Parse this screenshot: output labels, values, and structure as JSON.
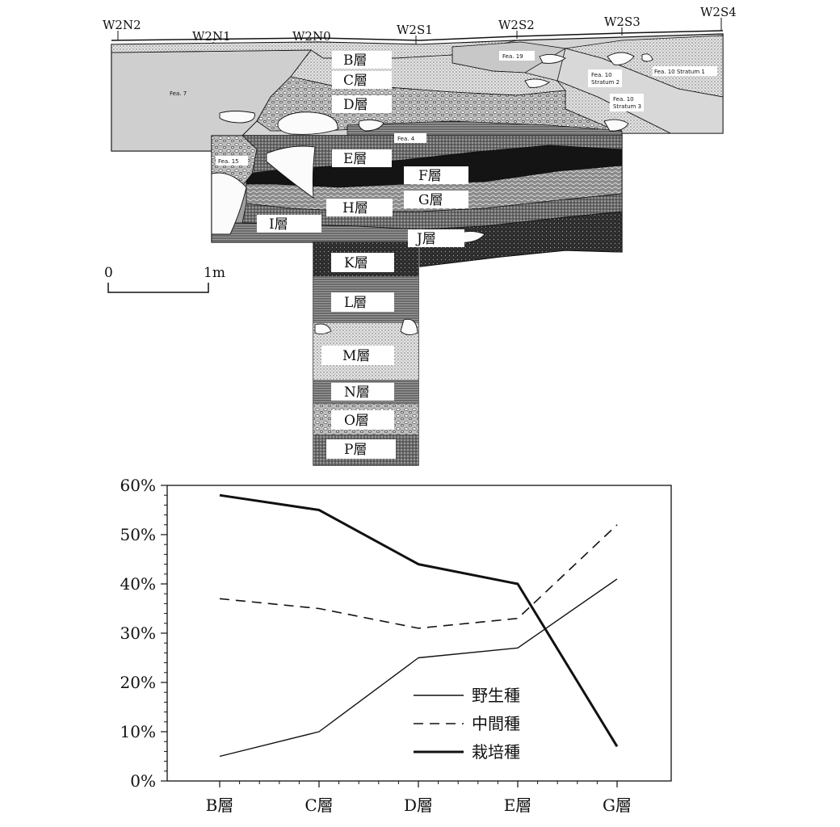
{
  "section": {
    "stations": [
      "W2N2",
      "W2N1",
      "W2N0",
      "W2S1",
      "W2S2",
      "W2S3",
      "W2S4"
    ],
    "layers": [
      {
        "id": "B",
        "label": "B層"
      },
      {
        "id": "C",
        "label": "C層"
      },
      {
        "id": "D",
        "label": "D層"
      },
      {
        "id": "E",
        "label": "E層"
      },
      {
        "id": "F",
        "label": "F層"
      },
      {
        "id": "G",
        "label": "G層"
      },
      {
        "id": "H",
        "label": "H層"
      },
      {
        "id": "I",
        "label": "I層"
      },
      {
        "id": "J",
        "label": "J層"
      },
      {
        "id": "K",
        "label": "K層"
      },
      {
        "id": "L",
        "label": "L層"
      },
      {
        "id": "M",
        "label": "M層"
      },
      {
        "id": "N",
        "label": "N層"
      },
      {
        "id": "O",
        "label": "O層"
      },
      {
        "id": "P",
        "label": "P層"
      }
    ],
    "features": {
      "fea7": "Fea. 7",
      "fea19": "Fea. 19",
      "fea10s1": "Fea. 10 Stratum 1",
      "fea10s2a": "Fea. 10",
      "fea10s2b": "Stratum 2",
      "fea10s3a": "Fea. 10",
      "fea10s3b": "Stratum 3",
      "fea4": "Fea. 4",
      "fea15": "Fea. 15"
    },
    "scale": {
      "start": "0",
      "end": "1m"
    },
    "colors": {
      "fill": "#d9d9d9",
      "ink": "#111111",
      "dark": "#1a1a1a"
    }
  },
  "chart_data": {
    "type": "line",
    "categories": [
      "B層",
      "C層",
      "D層",
      "E層",
      "G層"
    ],
    "series": [
      {
        "name": "野生種",
        "style": "thin-solid",
        "values": [
          5,
          10,
          25,
          27,
          41
        ]
      },
      {
        "name": "中間種",
        "style": "dashed",
        "values": [
          37,
          35,
          31,
          33,
          52
        ]
      },
      {
        "name": "栽培種",
        "style": "thick-solid",
        "values": [
          58,
          55,
          44,
          40,
          7
        ]
      }
    ],
    "ylim": [
      0,
      60
    ],
    "yticks": [
      "0%",
      "10%",
      "20%",
      "30%",
      "40%",
      "50%",
      "60%"
    ],
    "legend_position": "bottom-right",
    "grid": false
  }
}
